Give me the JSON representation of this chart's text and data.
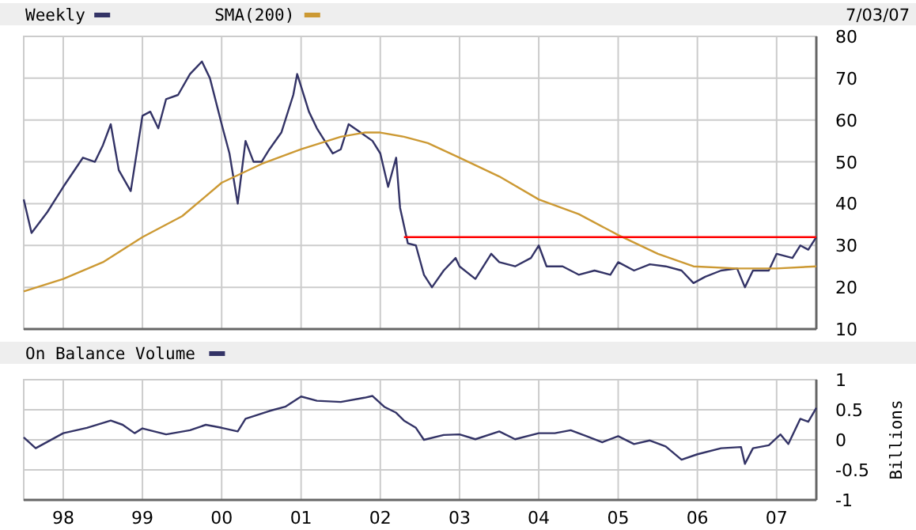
{
  "chart_data": [
    {
      "type": "line",
      "annotations": [
        "7/03/07"
      ],
      "legend": "top left",
      "grid": true,
      "tick_labels": "y",
      "xlim": [
        "1997-07-03",
        "2007-07-03"
      ],
      "xticks": [
        {
          "value": "1998-01-01",
          "label": null
        },
        {
          "value": "1999-01-01",
          "label": null
        },
        {
          "value": "2000-01-01",
          "label": null
        },
        {
          "value": "2001-01-01",
          "label": null
        },
        {
          "value": "2002-01-01",
          "label": null
        },
        {
          "value": "2003-01-01",
          "label": null
        },
        {
          "value": "2004-01-01",
          "label": null
        },
        {
          "value": "2005-01-01",
          "label": null
        },
        {
          "value": "2006-01-01",
          "label": null
        },
        {
          "value": "2007-01-01",
          "label": null
        }
      ],
      "ylim": [
        10,
        80
      ],
      "yticks": [
        10,
        20,
        30,
        40,
        50,
        60,
        70,
        80
      ],
      "series": [
        {
          "name": "Weekly",
          "color": "#333366",
          "x": [
            "1997-07-03",
            "1997-08-08",
            "1997-10-20",
            "1998-01-01",
            "1998-04-02",
            "1998-05-27",
            "1998-07-03",
            "1998-08-08",
            "1998-09-14",
            "1998-11-08",
            "1998-12-14",
            "1999-01-01",
            "1999-02-06",
            "1999-03-15",
            "1999-04-20",
            "1999-06-14",
            "1999-08-08",
            "1999-10-02",
            "1999-11-08",
            "2000-01-01",
            "2000-02-06",
            "2000-03-15",
            "2000-04-20",
            "2000-05-27",
            "2000-07-03",
            "2000-08-08",
            "2000-10-02",
            "2000-11-26",
            "2000-12-14",
            "2001-01-01",
            "2001-02-06",
            "2001-03-15",
            "2001-04-20",
            "2001-05-27",
            "2001-07-03",
            "2001-08-08",
            "2001-10-02",
            "2001-11-26",
            "2002-01-01",
            "2002-02-06",
            "2002-03-15",
            "2002-04-02",
            "2002-05-08",
            "2002-06-14",
            "2002-07-21",
            "2002-08-27",
            "2002-10-20",
            "2002-12-14",
            "2003-01-01",
            "2003-03-15",
            "2003-05-27",
            "2003-07-03",
            "2003-09-14",
            "2003-11-26",
            "2004-01-01",
            "2004-02-06",
            "2004-04-20",
            "2004-07-03",
            "2004-09-14",
            "2004-11-26",
            "2005-01-01",
            "2005-03-15",
            "2005-05-27",
            "2005-08-08",
            "2005-10-20",
            "2005-12-14",
            "2006-02-06",
            "2006-04-20",
            "2006-07-03",
            "2006-08-08",
            "2006-09-14",
            "2006-11-26",
            "2007-01-01",
            "2007-03-15",
            "2007-04-20",
            "2007-05-27",
            "2007-07-03"
          ],
          "values": [
            41,
            33,
            38,
            44,
            51,
            50,
            54,
            59,
            48,
            43,
            55,
            61,
            62,
            58,
            65,
            66,
            71,
            74,
            70,
            59,
            52,
            40,
            55,
            50,
            50,
            53,
            57,
            66,
            71,
            68,
            62,
            58,
            55,
            52,
            53,
            59,
            57,
            55,
            52,
            44,
            51,
            39,
            30.5,
            30,
            23,
            20,
            24,
            27,
            25,
            22,
            28,
            26,
            25,
            27,
            30,
            25,
            25,
            23,
            24,
            23,
            26,
            24,
            25.5,
            25,
            24,
            21,
            22.5,
            24,
            24.5,
            20,
            24,
            24,
            28,
            27,
            30,
            29,
            32
          ]
        },
        {
          "name": "SMA(200)",
          "color": "#cc9933",
          "x": [
            "1997-07-03",
            "1998-01-01",
            "1998-07-03",
            "1999-01-01",
            "1999-07-03",
            "2000-01-01",
            "2000-07-03",
            "2001-01-01",
            "2001-07-03",
            "2001-10-20",
            "2002-01-01",
            "2002-04-20",
            "2002-08-08",
            "2003-01-01",
            "2003-07-03",
            "2004-01-01",
            "2004-07-03",
            "2005-01-01",
            "2005-07-03",
            "2005-12-14",
            "2006-07-03",
            "2007-01-01",
            "2007-07-03"
          ],
          "values": [
            19,
            22,
            26,
            32,
            37,
            45,
            49.5,
            53,
            56,
            57,
            57,
            56,
            54.5,
            51,
            46.5,
            41,
            37.5,
            32.5,
            28,
            25,
            24.5,
            24.5,
            25
          ]
        },
        {
          "color": "#ff0000",
          "x": [
            "2002-04-20",
            "2007-07-03"
          ],
          "values": [
            32,
            32
          ]
        }
      ]
    },
    {
      "type": "line",
      "legend": "top left",
      "grid": true,
      "ylabel": "Billions",
      "xlim": [
        "1997-07-03",
        "2007-07-03"
      ],
      "xticks": [
        {
          "value": "1998-01-01",
          "label": "98"
        },
        {
          "value": "1999-01-01",
          "label": "99"
        },
        {
          "value": "2000-01-01",
          "label": "00"
        },
        {
          "value": "2001-01-01",
          "label": "01"
        },
        {
          "value": "2002-01-01",
          "label": "02"
        },
        {
          "value": "2003-01-01",
          "label": "03"
        },
        {
          "value": "2004-01-01",
          "label": "04"
        },
        {
          "value": "2005-01-01",
          "label": "05"
        },
        {
          "value": "2006-01-01",
          "label": "06"
        },
        {
          "value": "2007-01-01",
          "label": "07"
        }
      ],
      "ylim": [
        -1,
        1
      ],
      "yticks": [
        -1,
        -0.5,
        0,
        0.5,
        1
      ],
      "series": [
        {
          "name": "On Balance Volume",
          "color": "#333366",
          "x": [
            "1997-07-03",
            "1997-08-27",
            "1998-01-01",
            "1998-04-20",
            "1998-08-08",
            "1998-10-02",
            "1998-11-26",
            "1999-01-01",
            "1999-04-20",
            "1999-08-08",
            "1999-10-20",
            "2000-01-01",
            "2000-03-15",
            "2000-04-20",
            "2000-08-08",
            "2000-10-20",
            "2001-01-01",
            "2001-03-15",
            "2001-07-03",
            "2001-10-20",
            "2001-11-26",
            "2002-01-19",
            "2002-03-15",
            "2002-04-20",
            "2002-06-14",
            "2002-07-21",
            "2002-10-20",
            "2003-01-01",
            "2003-03-15",
            "2003-07-03",
            "2003-09-14",
            "2004-01-01",
            "2004-03-15",
            "2004-05-27",
            "2004-08-08",
            "2004-10-20",
            "2005-01-01",
            "2005-03-15",
            "2005-05-27",
            "2005-08-08",
            "2005-10-20",
            "2006-01-01",
            "2006-04-20",
            "2006-07-21",
            "2006-08-08",
            "2006-09-14",
            "2006-11-26",
            "2007-01-19",
            "2007-02-24",
            "2007-04-20",
            "2007-05-27",
            "2007-07-03"
          ],
          "values": [
            0.04,
            -0.14,
            0.11,
            0.2,
            0.32,
            0.25,
            0.11,
            0.19,
            0.09,
            0.16,
            0.25,
            0.2,
            0.14,
            0.35,
            0.48,
            0.55,
            0.72,
            0.65,
            0.63,
            0.7,
            0.73,
            0.55,
            0.45,
            0.32,
            0.2,
            0,
            0.08,
            0.09,
            0.01,
            0.14,
            0.01,
            0.11,
            0.11,
            0.16,
            0.06,
            -0.04,
            0.06,
            -0.07,
            -0.01,
            -0.11,
            -0.33,
            -0.24,
            -0.14,
            -0.12,
            -0.4,
            -0.14,
            -0.09,
            0.09,
            -0.07,
            0.35,
            0.3,
            0.53
          ]
        }
      ]
    }
  ]
}
